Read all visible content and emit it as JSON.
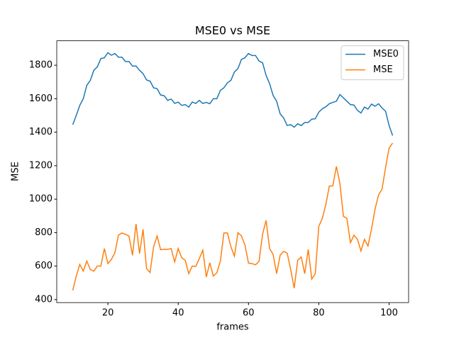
{
  "chart_data": {
    "type": "line",
    "title": "MSE0 vs MSE",
    "xlabel": "frames",
    "ylabel": "MSE",
    "x": [
      10,
      11,
      12,
      13,
      14,
      15,
      16,
      17,
      18,
      19,
      20,
      21,
      22,
      23,
      24,
      25,
      26,
      27,
      28,
      29,
      30,
      31,
      32,
      33,
      34,
      35,
      36,
      37,
      38,
      39,
      40,
      41,
      42,
      43,
      44,
      45,
      46,
      47,
      48,
      49,
      50,
      51,
      52,
      53,
      54,
      55,
      56,
      57,
      58,
      59,
      60,
      61,
      62,
      63,
      64,
      65,
      66,
      67,
      68,
      69,
      70,
      71,
      72,
      73,
      74,
      75,
      76,
      77,
      78,
      79,
      80,
      81,
      82,
      83,
      84,
      85,
      86,
      87,
      88,
      89,
      90,
      91,
      92,
      93,
      94,
      95,
      96,
      97,
      98,
      99,
      100,
      101
    ],
    "series": [
      {
        "name": "MSE0",
        "color": "#1f77b4",
        "values": [
          1445,
          1500,
          1560,
          1600,
          1680,
          1710,
          1770,
          1790,
          1840,
          1845,
          1875,
          1860,
          1870,
          1848,
          1848,
          1822,
          1822,
          1795,
          1795,
          1770,
          1750,
          1712,
          1705,
          1665,
          1660,
          1622,
          1618,
          1590,
          1598,
          1572,
          1580,
          1560,
          1565,
          1550,
          1580,
          1572,
          1590,
          1572,
          1578,
          1570,
          1600,
          1600,
          1650,
          1665,
          1695,
          1710,
          1760,
          1780,
          1835,
          1845,
          1870,
          1858,
          1858,
          1825,
          1815,
          1740,
          1690,
          1620,
          1585,
          1510,
          1485,
          1440,
          1445,
          1430,
          1450,
          1440,
          1458,
          1458,
          1478,
          1480,
          1520,
          1540,
          1552,
          1570,
          1578,
          1585,
          1625,
          1605,
          1585,
          1565,
          1562,
          1530,
          1515,
          1550,
          1538,
          1568,
          1555,
          1570,
          1545,
          1525,
          1440,
          1380
        ]
      },
      {
        "name": "MSE",
        "color": "#ff7f0e",
        "values": [
          455,
          540,
          610,
          570,
          630,
          580,
          570,
          600,
          600,
          705,
          615,
          640,
          680,
          785,
          798,
          790,
          780,
          665,
          852,
          675,
          820,
          585,
          562,
          715,
          780,
          698,
          700,
          700,
          705,
          625,
          705,
          650,
          635,
          555,
          600,
          598,
          645,
          695,
          535,
          620,
          540,
          560,
          630,
          798,
          798,
          715,
          660,
          800,
          780,
          725,
          618,
          615,
          608,
          628,
          790,
          873,
          705,
          670,
          555,
          665,
          688,
          678,
          580,
          468,
          635,
          655,
          555,
          700,
          522,
          555,
          838,
          885,
          968,
          1078,
          1080,
          1195,
          1095,
          898,
          885,
          740,
          785,
          760,
          690,
          760,
          720,
          822,
          940,
          1025,
          1060,
          1190,
          1305,
          1335
        ]
      }
    ],
    "xlim": [
      5.45,
      105.55
    ],
    "ylim": [
      382,
      1946
    ],
    "xticks": [
      20,
      40,
      60,
      80,
      100
    ],
    "yticks": [
      400,
      600,
      800,
      1000,
      1200,
      1400,
      1600,
      1800
    ],
    "legend": "upper right"
  }
}
